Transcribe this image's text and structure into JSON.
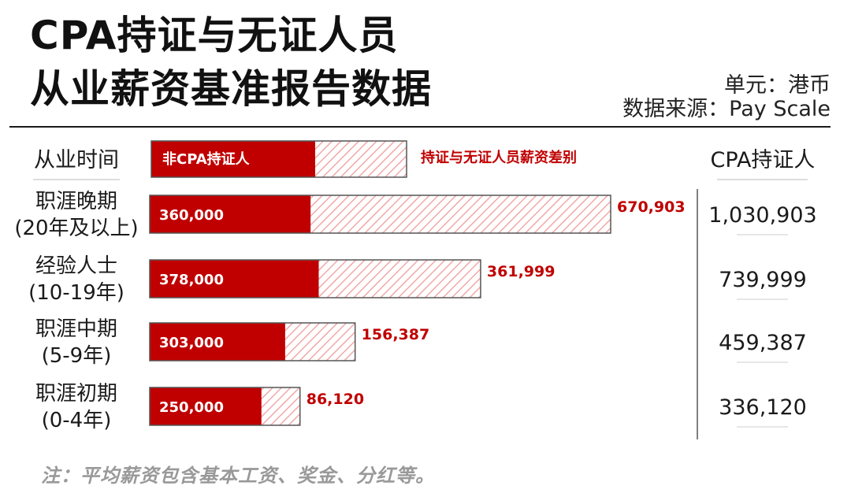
{
  "title": [
    "CPA持证与无证人员",
    "从业薪资基准报告数据"
  ],
  "unit": "单元：港币",
  "source": "数据来源：Pay Scale",
  "note": "注：平均薪资包含基本工资、奖金、分红等。",
  "colors": {
    "red": "#c00000",
    "hatch": "#f2a8a8",
    "border": "#555555",
    "text": "#1a1a1a"
  },
  "chart_data": {
    "type": "bar",
    "stacked": true,
    "orientation": "horizontal",
    "header": {
      "category_label": "从业时间",
      "total_label": "CPA持证人"
    },
    "categories": [
      {
        "lines": [
          "职涯晚期",
          "(20年及以上)"
        ]
      },
      {
        "lines": [
          "经验人士",
          "(10-19年)"
        ]
      },
      {
        "lines": [
          "职涯中期",
          "(5-9年)"
        ]
      },
      {
        "lines": [
          "职涯初期",
          "(0-4年)"
        ]
      }
    ],
    "series": [
      {
        "name": "非CPA持证人",
        "values": [
          360000,
          378000,
          303000,
          250000
        ],
        "labels": [
          "360,000",
          "378,000",
          "303,000",
          "250,000"
        ]
      },
      {
        "name": "持证与无证人员薪资差别",
        "values": [
          670903,
          361999,
          156387,
          86120
        ],
        "labels": [
          "670,903",
          "361,999",
          "156,387",
          "86,120"
        ]
      }
    ],
    "totals": {
      "values": [
        1030903,
        739999,
        459387,
        336120
      ],
      "labels": [
        "1,030,903",
        "739,999",
        "459,387",
        "336,120"
      ]
    }
  }
}
